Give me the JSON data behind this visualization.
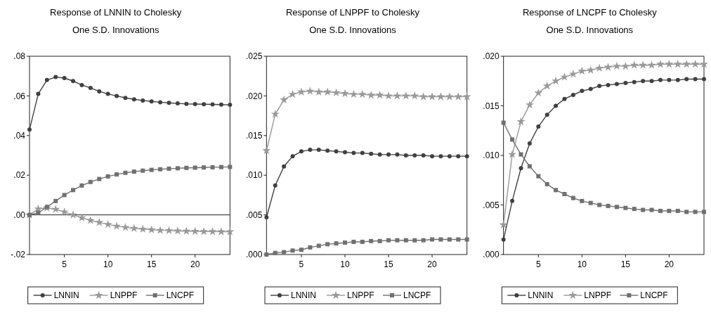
{
  "chart_data": [
    {
      "type": "line",
      "title": "Response of LNNIN to Cholesky",
      "subtitle": "One S.D. Innovations",
      "x": [
        1,
        2,
        3,
        4,
        5,
        6,
        7,
        8,
        9,
        10,
        11,
        12,
        13,
        14,
        15,
        16,
        17,
        18,
        19,
        20,
        21,
        22,
        23,
        24
      ],
      "xlim": [
        1,
        24
      ],
      "xticks": [
        5,
        10,
        15,
        20
      ],
      "ylim": [
        -0.02,
        0.08
      ],
      "yticks": [
        {
          "value": -0.02,
          "label": "-.02"
        },
        {
          "value": 0,
          "label": ".00"
        },
        {
          "value": 0.02,
          "label": ".02"
        },
        {
          "value": 0.04,
          "label": ".04"
        },
        {
          "value": 0.06,
          "label": ".06"
        },
        {
          "value": 0.08,
          "label": ".08"
        }
      ],
      "grid": false,
      "legend": "bottom",
      "ref_lines": [
        {
          "axis": "y",
          "value": 0,
          "color": "#202020"
        }
      ],
      "series": [
        {
          "name": "LNNIN",
          "color": "#404040",
          "marker": "circle",
          "values": [
            0.043,
            0.061,
            0.068,
            0.0695,
            0.069,
            0.0675,
            0.0655,
            0.064,
            0.0623,
            0.061,
            0.06,
            0.059,
            0.0583,
            0.0577,
            0.0572,
            0.0568,
            0.0565,
            0.0562,
            0.056,
            0.0559,
            0.0558,
            0.0557,
            0.0556,
            0.0555
          ]
        },
        {
          "name": "LNPPF",
          "color": "#999999",
          "marker": "star",
          "values": [
            0,
            0.003,
            0.0035,
            0.0028,
            0.0015,
            0,
            -0.0015,
            -0.0028,
            -0.0038,
            -0.0048,
            -0.0057,
            -0.0063,
            -0.0068,
            -0.0072,
            -0.0075,
            -0.0078,
            -0.0079,
            -0.0081,
            -0.0082,
            -0.0083,
            -0.0084,
            -0.0084,
            -0.0085,
            -0.0085
          ]
        },
        {
          "name": "LNCPF",
          "color": "#707070",
          "marker": "square",
          "values": [
            0,
            0.001,
            0.004,
            0.007,
            0.01,
            0.0125,
            0.0148,
            0.0166,
            0.0181,
            0.0194,
            0.0204,
            0.0212,
            0.0218,
            0.0223,
            0.0227,
            0.023,
            0.0233,
            0.0235,
            0.0237,
            0.0238,
            0.0239,
            0.024,
            0.0241,
            0.0242
          ]
        }
      ]
    },
    {
      "type": "line",
      "title": "Response of LNPPF to Cholesky",
      "subtitle": "One S.D. Innovations",
      "x": [
        1,
        2,
        3,
        4,
        5,
        6,
        7,
        8,
        9,
        10,
        11,
        12,
        13,
        14,
        15,
        16,
        17,
        18,
        19,
        20,
        21,
        22,
        23,
        24
      ],
      "xlim": [
        1,
        24
      ],
      "xticks": [
        5,
        10,
        15,
        20
      ],
      "ylim": [
        0,
        0.025
      ],
      "yticks": [
        {
          "value": 0,
          "label": ".000"
        },
        {
          "value": 0.005,
          "label": ".005"
        },
        {
          "value": 0.01,
          "label": ".010"
        },
        {
          "value": 0.015,
          "label": ".015"
        },
        {
          "value": 0.02,
          "label": ".020"
        },
        {
          "value": 0.025,
          "label": ".025"
        }
      ],
      "grid": false,
      "legend": "bottom",
      "series": [
        {
          "name": "LNNIN",
          "color": "#404040",
          "marker": "circle",
          "values": [
            0.0047,
            0.0087,
            0.0111,
            0.0124,
            0.013,
            0.0132,
            0.0132,
            0.0131,
            0.013,
            0.0129,
            0.0128,
            0.0128,
            0.0127,
            0.0126,
            0.0126,
            0.0126,
            0.0125,
            0.0125,
            0.0125,
            0.0124,
            0.0124,
            0.0124,
            0.0124,
            0.0124
          ]
        },
        {
          "name": "LNPPF",
          "color": "#999999",
          "marker": "star",
          "values": [
            0.0131,
            0.0177,
            0.0195,
            0.0202,
            0.0205,
            0.0206,
            0.0205,
            0.0205,
            0.0204,
            0.0203,
            0.0202,
            0.0202,
            0.0201,
            0.0201,
            0.02,
            0.02,
            0.02,
            0.02,
            0.0199,
            0.0199,
            0.0199,
            0.0199,
            0.0199,
            0.0199
          ]
        },
        {
          "name": "LNCPF",
          "color": "#707070",
          "marker": "square",
          "values": [
            0,
            0.0002,
            0.0003,
            0.0005,
            0.0006,
            0.0009,
            0.0011,
            0.0013,
            0.0014,
            0.0015,
            0.0016,
            0.0016,
            0.0017,
            0.0017,
            0.0018,
            0.0018,
            0.0018,
            0.0018,
            0.0018,
            0.0019,
            0.0019,
            0.0019,
            0.0019,
            0.0019
          ]
        }
      ]
    },
    {
      "type": "line",
      "title": "Response of LNCPF to Cholesky",
      "subtitle": "One S.D. Innovations",
      "x": [
        1,
        2,
        3,
        4,
        5,
        6,
        7,
        8,
        9,
        10,
        11,
        12,
        13,
        14,
        15,
        16,
        17,
        18,
        19,
        20,
        21,
        22,
        23,
        24
      ],
      "xlim": [
        1,
        24
      ],
      "xticks": [
        5,
        10,
        15,
        20
      ],
      "ylim": [
        0,
        0.02
      ],
      "yticks": [
        {
          "value": 0,
          "label": ".000"
        },
        {
          "value": 0.005,
          "label": ".005"
        },
        {
          "value": 0.01,
          "label": ".010"
        },
        {
          "value": 0.015,
          "label": ".015"
        },
        {
          "value": 0.02,
          "label": ".020"
        }
      ],
      "grid": false,
      "legend": "bottom",
      "series": [
        {
          "name": "LNNIN",
          "color": "#404040",
          "marker": "circle",
          "values": [
            0.0015,
            0.0054,
            0.0087,
            0.0112,
            0.0129,
            0.0141,
            0.015,
            0.0157,
            0.0161,
            0.0165,
            0.0167,
            0.017,
            0.0171,
            0.0172,
            0.0173,
            0.0174,
            0.0175,
            0.0175,
            0.0176,
            0.0176,
            0.0176,
            0.0177,
            0.0177,
            0.0177
          ]
        },
        {
          "name": "LNPPF",
          "color": "#999999",
          "marker": "star",
          "values": [
            0.003,
            0.0101,
            0.0134,
            0.0151,
            0.0163,
            0.017,
            0.0175,
            0.0179,
            0.0182,
            0.0185,
            0.0186,
            0.0188,
            0.0189,
            0.019,
            0.019,
            0.0191,
            0.0191,
            0.0191,
            0.0192,
            0.0192,
            0.0192,
            0.0192,
            0.0192,
            0.0192
          ]
        },
        {
          "name": "LNCPF",
          "color": "#707070",
          "marker": "square",
          "values": [
            0.0133,
            0.0116,
            0.0101,
            0.0089,
            0.0079,
            0.0071,
            0.0065,
            0.0061,
            0.0057,
            0.0054,
            0.0052,
            0.005,
            0.0049,
            0.0048,
            0.0047,
            0.0046,
            0.0045,
            0.0045,
            0.0044,
            0.0044,
            0.0044,
            0.0043,
            0.0043,
            0.0043
          ]
        }
      ]
    }
  ]
}
